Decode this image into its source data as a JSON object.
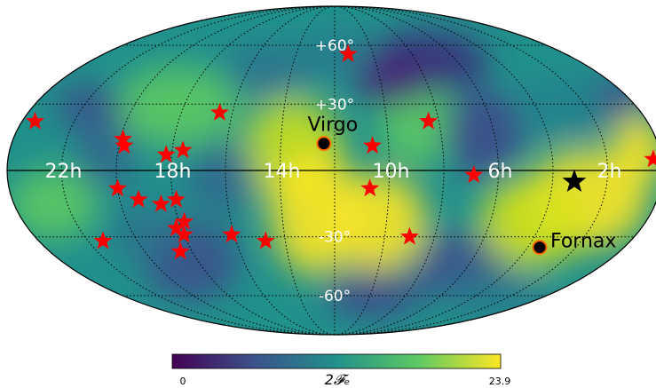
{
  "chart_data": {
    "type": "heatmap",
    "projection": "mollweide",
    "grid": true,
    "title": "",
    "xlabel": "",
    "ylabel": "",
    "ra_tick_labels": [
      "22h",
      "18h",
      "14h",
      "10h",
      "6h",
      "2h"
    ],
    "ra_tick_values_hours": [
      22,
      18,
      14,
      10,
      6,
      2
    ],
    "dec_tick_labels": [
      "+60°",
      "+30°",
      "-30°",
      "-60°"
    ],
    "dec_tick_values_deg": [
      60,
      30,
      -30,
      -60
    ],
    "colorbar": {
      "label": "2𝓕ₑ",
      "min": 0,
      "max": 23.9,
      "min_label": "0",
      "max_label": "23.9",
      "colormap": "viridis",
      "colors": [
        "#440154",
        "#3b528b",
        "#21918c",
        "#5ec962",
        "#fde725"
      ]
    },
    "colors": {
      "stars": "#ff0000",
      "marker_edge": "#ff6a00",
      "marker_fill": "#000000"
    },
    "labeled_markers": [
      {
        "name": "Virgo",
        "ra_hours": 12.4,
        "dec_deg": 12
      },
      {
        "name": "Fornax",
        "ra_hours": 3.5,
        "dec_deg": -35
      }
    ],
    "black_star": {
      "ra_hours": 3.2,
      "dec_deg": -5
    },
    "red_stars": [
      {
        "ra_hours": 11.3,
        "dec_deg": 55
      },
      {
        "ra_hours": 23.5,
        "dec_deg": 22
      },
      {
        "ra_hours": 16.5,
        "dec_deg": 26
      },
      {
        "ra_hours": 8.4,
        "dec_deg": 22
      },
      {
        "ra_hours": 10.6,
        "dec_deg": 11
      },
      {
        "ra_hours": 19.9,
        "dec_deg": 14
      },
      {
        "ra_hours": 19.8,
        "dec_deg": 11
      },
      {
        "ra_hours": 18.2,
        "dec_deg": 7
      },
      {
        "ra_hours": 17.6,
        "dec_deg": 9
      },
      {
        "ra_hours": 0.3,
        "dec_deg": 5
      },
      {
        "ra_hours": 6.9,
        "dec_deg": -2
      },
      {
        "ra_hours": 20.0,
        "dec_deg": -8
      },
      {
        "ra_hours": 10.7,
        "dec_deg": -8
      },
      {
        "ra_hours": 19.3,
        "dec_deg": -13
      },
      {
        "ra_hours": 17.9,
        "dec_deg": -13
      },
      {
        "ra_hours": 18.5,
        "dec_deg": -15
      },
      {
        "ra_hours": 17.8,
        "dec_deg": -23
      },
      {
        "ra_hours": 18.2,
        "dec_deg": -26
      },
      {
        "ra_hours": 18.0,
        "dec_deg": -29
      },
      {
        "ra_hours": 16.1,
        "dec_deg": -29
      },
      {
        "ra_hours": 14.8,
        "dec_deg": -32
      },
      {
        "ra_hours": 9.0,
        "dec_deg": -30
      },
      {
        "ra_hours": 21.4,
        "dec_deg": -32
      },
      {
        "ra_hours": 18.5,
        "dec_deg": -37
      }
    ]
  }
}
